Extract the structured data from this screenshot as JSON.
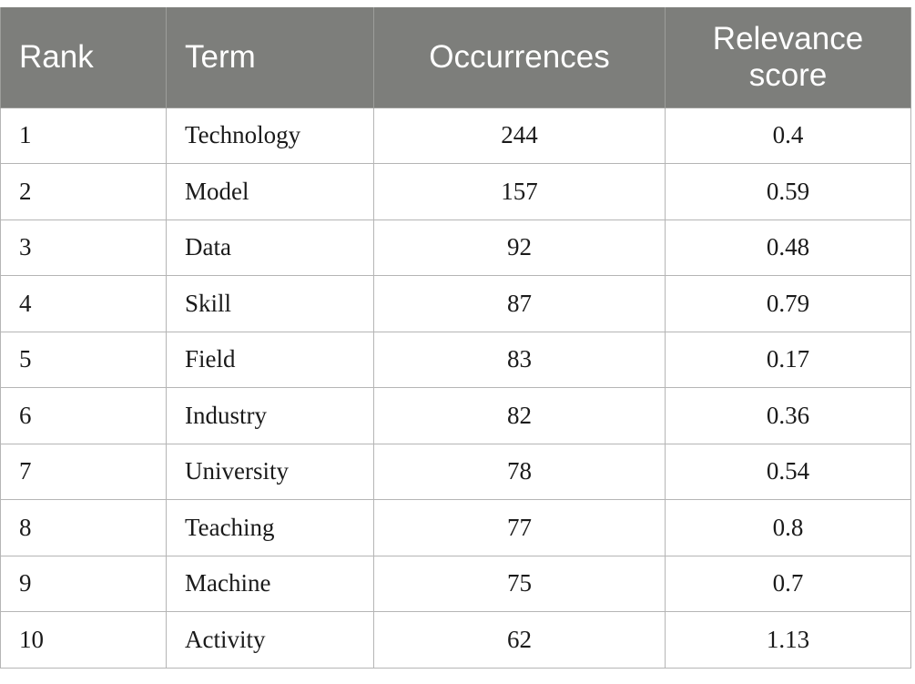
{
  "table": {
    "headers": {
      "rank": "Rank",
      "term": "Term",
      "occurrences": "Occurrences",
      "relevance": "Relevance score"
    },
    "rows": [
      {
        "rank": "1",
        "term": "Technology",
        "occurrences": "244",
        "relevance": "0.4"
      },
      {
        "rank": "2",
        "term": "Model",
        "occurrences": "157",
        "relevance": "0.59"
      },
      {
        "rank": "3",
        "term": "Data",
        "occurrences": "92",
        "relevance": "0.48"
      },
      {
        "rank": "4",
        "term": "Skill",
        "occurrences": "87",
        "relevance": "0.79"
      },
      {
        "rank": "5",
        "term": "Field",
        "occurrences": "83",
        "relevance": "0.17"
      },
      {
        "rank": "6",
        "term": "Industry",
        "occurrences": "82",
        "relevance": "0.36"
      },
      {
        "rank": "7",
        "term": "University",
        "occurrences": "78",
        "relevance": "0.54"
      },
      {
        "rank": "8",
        "term": "Teaching",
        "occurrences": "77",
        "relevance": "0.8"
      },
      {
        "rank": "9",
        "term": "Machine",
        "occurrences": "75",
        "relevance": "0.7"
      },
      {
        "rank": "10",
        "term": "Activity",
        "occurrences": "62",
        "relevance": "1.13"
      }
    ]
  }
}
